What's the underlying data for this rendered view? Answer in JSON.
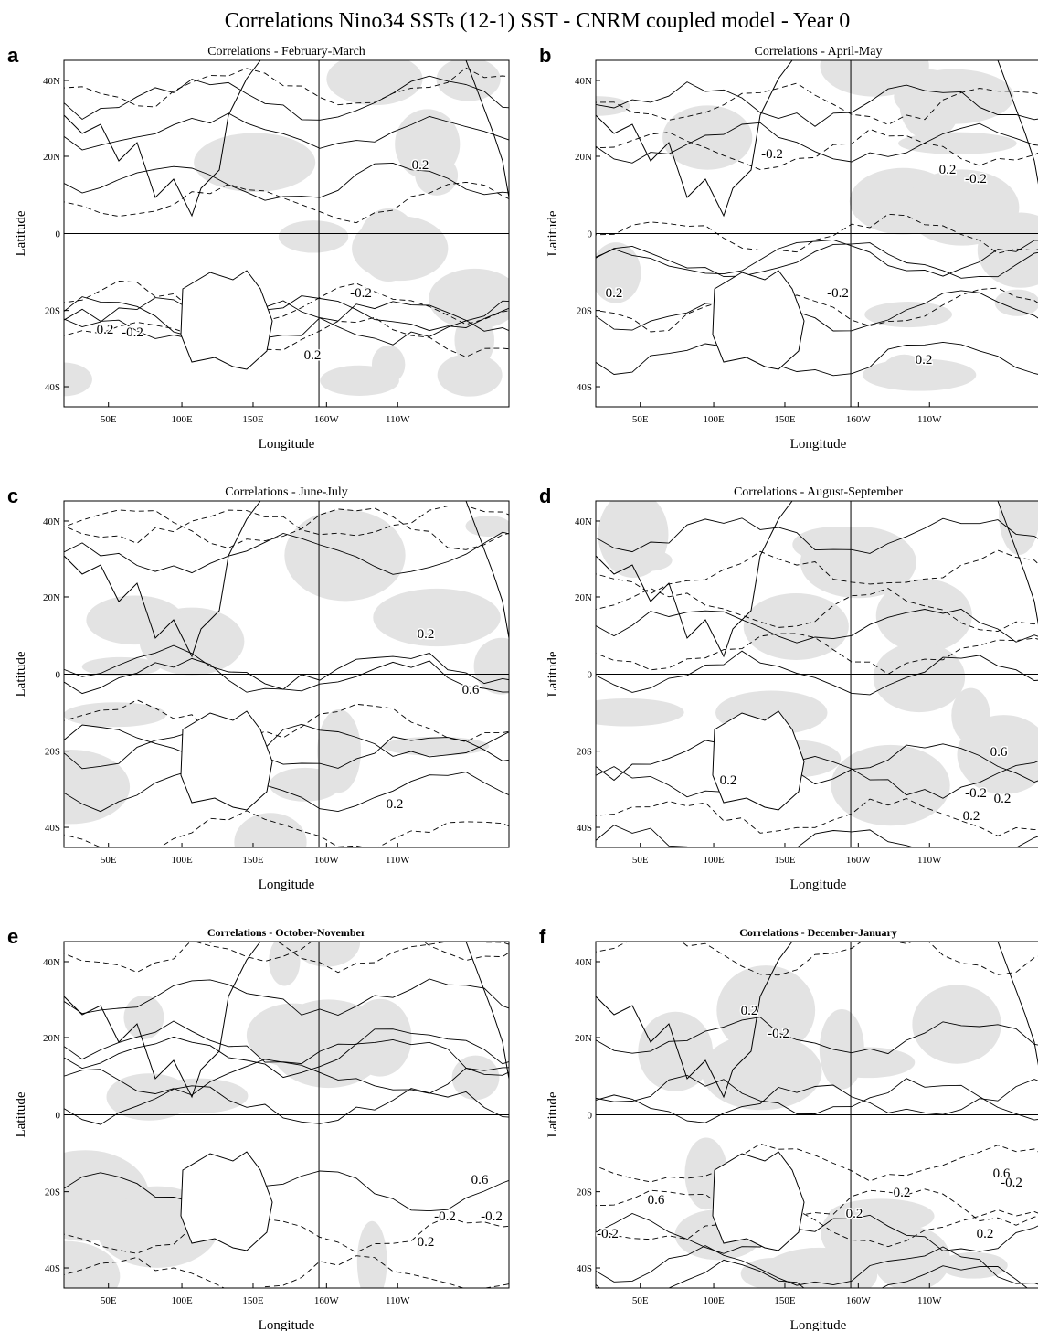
{
  "title": "Correlations Nino34 SSTs (12-1) SST - CNRM coupled model - Year 0",
  "panels": [
    {
      "letter": "a",
      "title": "Correlations - February-March",
      "xlabel": "Longitude",
      "ylabel": "Latitude",
      "x_ticks": [
        "50E",
        "100E",
        "150E",
        "160W",
        "110W"
      ],
      "y_ticks": [
        "40N",
        "20N",
        "0",
        "20S",
        "40S"
      ],
      "contour_labels": [
        "0.2",
        "-0.2",
        "0.2",
        "-0.2",
        "0.2"
      ]
    },
    {
      "letter": "b",
      "title": "Correlations - April-May",
      "xlabel": "Longitude",
      "ylabel": "Latitude",
      "x_ticks": [
        "50E",
        "100E",
        "150E",
        "160W",
        "110W"
      ],
      "y_ticks": [
        "40N",
        "20N",
        "0",
        "20S",
        "40S"
      ],
      "contour_labels": [
        "-0.2",
        "0.2",
        "-0.2",
        "-0.2",
        "0.2",
        "0.2"
      ]
    },
    {
      "letter": "c",
      "title": "Correlations - June-July",
      "xlabel": "Longitude",
      "ylabel": "Latitude",
      "x_ticks": [
        "50E",
        "100E",
        "150E",
        "160W",
        "110W"
      ],
      "y_ticks": [
        "40N",
        "20N",
        "0",
        "20S",
        "40S"
      ],
      "contour_labels": [
        "0.2",
        "0.6",
        "0.2"
      ]
    },
    {
      "letter": "d",
      "title": "Correlations - August-September",
      "xlabel": "Longitude",
      "ylabel": "Latitude",
      "x_ticks": [
        "50E",
        "100E",
        "150E",
        "160W",
        "110W"
      ],
      "y_ticks": [
        "40N",
        "20N",
        "0",
        "20S",
        "40S"
      ],
      "contour_labels": [
        "0.6",
        "0.2",
        "0.2",
        "-0.2",
        "0.2"
      ]
    },
    {
      "letter": "e",
      "title": "Correlations - October-November",
      "xlabel": "Longitude",
      "ylabel": "Latitude",
      "x_ticks": [
        "50E",
        "100E",
        "150E",
        "160W",
        "110W"
      ],
      "y_ticks": [
        "40N",
        "20N",
        "0",
        "20S",
        "40S"
      ],
      "contour_labels": [
        "0.6",
        "-0.2",
        "-0.2",
        "0.2"
      ]
    },
    {
      "letter": "f",
      "title": "Correlations - December-January",
      "xlabel": "Longitude",
      "ylabel": "Latitude",
      "x_ticks": [
        "50E",
        "100E",
        "150E",
        "160W",
        "110W"
      ],
      "y_ticks": [
        "40N",
        "20N",
        "0",
        "20S",
        "40S"
      ],
      "contour_labels": [
        "0.2",
        "-0.2",
        "0.6",
        "-0.2",
        "0.2",
        "0.6",
        "0.2",
        "0.2",
        "-0.2"
      ]
    }
  ]
}
